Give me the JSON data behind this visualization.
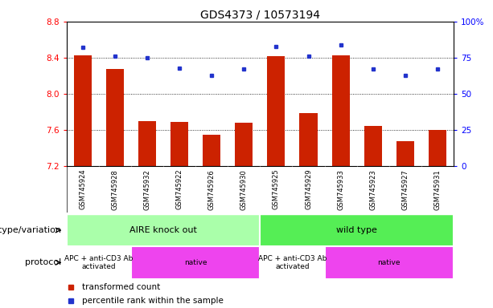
{
  "title": "GDS4373 / 10573194",
  "samples": [
    "GSM745924",
    "GSM745928",
    "GSM745932",
    "GSM745922",
    "GSM745926",
    "GSM745930",
    "GSM745925",
    "GSM745929",
    "GSM745933",
    "GSM745923",
    "GSM745927",
    "GSM745931"
  ],
  "red_values": [
    8.43,
    8.28,
    7.7,
    7.69,
    7.55,
    7.68,
    8.42,
    7.79,
    8.43,
    7.65,
    7.48,
    7.6
  ],
  "blue_values": [
    82,
    76,
    75,
    68,
    63,
    67,
    83,
    76,
    84,
    67,
    63,
    67
  ],
  "ylim_left": [
    7.2,
    8.8
  ],
  "ylim_right": [
    0,
    100
  ],
  "yticks_left": [
    7.2,
    7.6,
    8.0,
    8.4,
    8.8
  ],
  "yticks_right": [
    0,
    25,
    50,
    75,
    100
  ],
  "grid_values": [
    7.6,
    8.0,
    8.4
  ],
  "bar_color": "#cc2200",
  "dot_color": "#2233cc",
  "bar_bottom": 7.2,
  "genotype_label": "genotype/variation",
  "protocol_label": "protocol",
  "genotype_groups": [
    {
      "label": "AIRE knock out",
      "start": 0,
      "end": 6,
      "color": "#aaffaa"
    },
    {
      "label": "wild type",
      "start": 6,
      "end": 12,
      "color": "#55ee55"
    }
  ],
  "protocol_groups": [
    {
      "label": "APC + anti-CD3 Ab\nactivated",
      "start": 0,
      "end": 2,
      "color": "#ffffff"
    },
    {
      "label": "native",
      "start": 2,
      "end": 6,
      "color": "#ee44ee"
    },
    {
      "label": "APC + anti-CD3 Ab\nactivated",
      "start": 6,
      "end": 8,
      "color": "#ffffff"
    },
    {
      "label": "native",
      "start": 8,
      "end": 12,
      "color": "#ee44ee"
    }
  ],
  "legend_red": "transformed count",
  "legend_blue": "percentile rank within the sample",
  "title_fontsize": 10,
  "tick_fontsize": 7.5,
  "sample_fontsize": 6,
  "band_fontsize": 8,
  "protocol_fontsize": 6.5,
  "label_fontsize": 8
}
